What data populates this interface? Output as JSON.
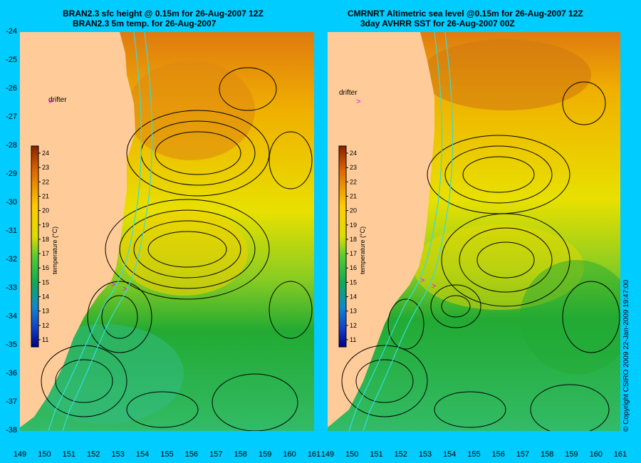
{
  "left_panel": {
    "title_line1": "BRAN2.3 sfc height @ 0.15m for 26-Aug-2007 12Z",
    "title_line2": "BRAN2.3 5m temp. for 26-Aug-2007",
    "drifter_label": "drifter",
    "colorbar_label": "temperature (°C)"
  },
  "right_panel": {
    "title_line1": "CMRNRT Altimetric sea level  @0.15m  for 26-Aug-2007 12Z",
    "title_line2": "3day AVHRR SST for 26-Aug-2007 00Z",
    "drifter_label": "drifter",
    "colorbar_label": "temperature (°C)"
  },
  "colorbar_ticks": [
    "24",
    "23",
    "22",
    "21",
    "20",
    "19",
    "18",
    "17",
    "16",
    "15",
    "14",
    "13",
    "12",
    "11"
  ],
  "y_axis_labels": [
    "-24",
    "-25",
    "-26",
    "-27",
    "-28",
    "-29",
    "-30",
    "-31",
    "-32",
    "-33",
    "-34",
    "-35",
    "-36",
    "-37",
    "-38"
  ],
  "x_axis_left": [
    "149",
    "150",
    "151",
    "152",
    "153",
    "154",
    "155",
    "156",
    "157",
    "158",
    "159",
    "160",
    "161"
  ],
  "x_axis_right": [
    "149",
    "150",
    "151",
    "152",
    "153",
    "154",
    "155",
    "156",
    "157",
    "158",
    "159",
    "160",
    "161"
  ],
  "copyright": "© Copyright CSIRO 2009  22-Jan-2009 19:47:00",
  "colors": {
    "background": "#00ccff",
    "land": "#ffcc99",
    "warm": "#e07a10",
    "mid": "#e8d800",
    "cool": "#22aa33",
    "contour": "#000000",
    "isobath": "#33dddd",
    "drifter": "#ff00ff"
  }
}
